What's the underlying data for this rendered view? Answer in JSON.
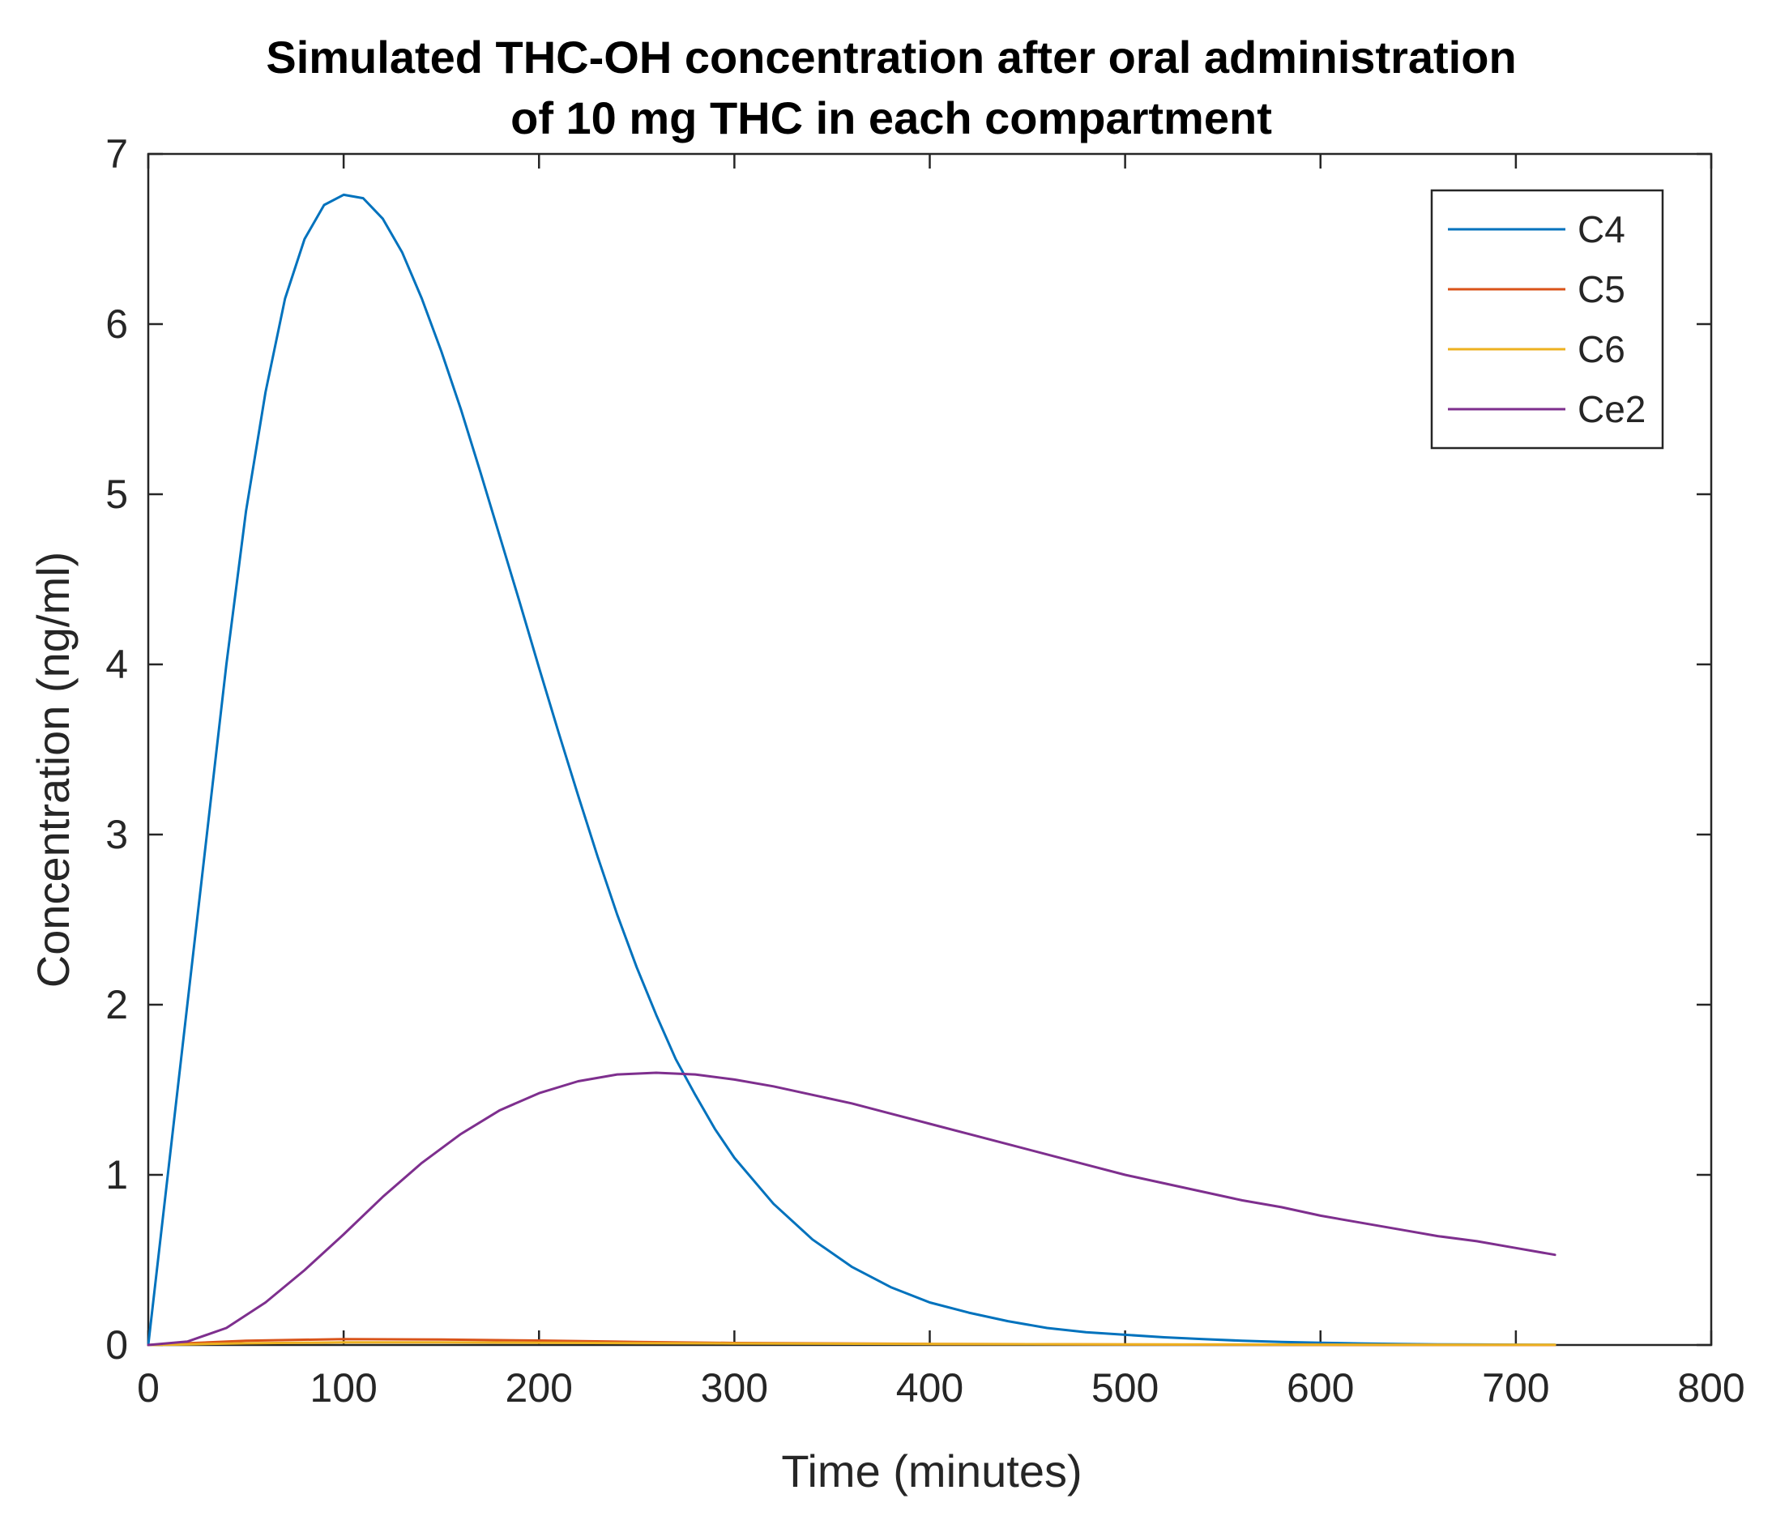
{
  "chart_data": {
    "type": "line",
    "title": [
      "Simulated THC-OH concentration after oral administration",
      "of 10 mg THC in each compartment"
    ],
    "xlabel": "Time (minutes)",
    "ylabel": "Concentration (ng/ml)",
    "xlim": [
      0,
      800
    ],
    "ylim": [
      0,
      7
    ],
    "xticks": [
      0,
      100,
      200,
      300,
      400,
      500,
      600,
      700,
      800
    ],
    "yticks": [
      0,
      1,
      2,
      3,
      4,
      5,
      6,
      7
    ],
    "grid": false,
    "legend_position": "top-right",
    "series": [
      {
        "name": "C4",
        "color": "#0072BD",
        "x": [
          0,
          10,
          20,
          30,
          40,
          50,
          60,
          70,
          80,
          90,
          100,
          110,
          120,
          130,
          140,
          150,
          160,
          170,
          180,
          190,
          200,
          210,
          220,
          230,
          240,
          250,
          260,
          270,
          280,
          290,
          300,
          320,
          340,
          360,
          380,
          400,
          420,
          440,
          460,
          480,
          500,
          520,
          540,
          560,
          580,
          600,
          620,
          640,
          660,
          680,
          700,
          720
        ],
        "y": [
          0,
          1.0,
          2.0,
          3.0,
          4.0,
          4.9,
          5.6,
          6.15,
          6.5,
          6.7,
          6.76,
          6.74,
          6.62,
          6.42,
          6.15,
          5.84,
          5.5,
          5.13,
          4.75,
          4.37,
          3.98,
          3.6,
          3.23,
          2.87,
          2.53,
          2.22,
          1.94,
          1.68,
          1.47,
          1.27,
          1.1,
          0.83,
          0.62,
          0.46,
          0.34,
          0.25,
          0.19,
          0.14,
          0.1,
          0.075,
          0.06,
          0.045,
          0.035,
          0.025,
          0.018,
          0.013,
          0.009,
          0.006,
          0.004,
          0.003,
          0.002,
          0.001
        ]
      },
      {
        "name": "C5",
        "color": "#D95319",
        "x": [
          0,
          20,
          50,
          100,
          150,
          200,
          250,
          300,
          400,
          500,
          600,
          720
        ],
        "y": [
          0,
          0.01,
          0.025,
          0.035,
          0.032,
          0.026,
          0.018,
          0.012,
          0.006,
          0.003,
          0.001,
          0.0
        ]
      },
      {
        "name": "C6",
        "color": "#EDB120",
        "x": [
          0,
          20,
          50,
          100,
          150,
          200,
          250,
          300,
          400,
          500,
          600,
          720
        ],
        "y": [
          0,
          0.004,
          0.01,
          0.015,
          0.015,
          0.013,
          0.011,
          0.009,
          0.006,
          0.004,
          0.002,
          0.001
        ]
      },
      {
        "name": "Ce2",
        "color": "#7E2F8E",
        "x": [
          0,
          20,
          40,
          60,
          80,
          100,
          120,
          140,
          160,
          180,
          200,
          220,
          240,
          260,
          280,
          300,
          320,
          340,
          360,
          380,
          400,
          420,
          440,
          460,
          480,
          500,
          520,
          540,
          560,
          580,
          600,
          620,
          640,
          660,
          680,
          700,
          720
        ],
        "y": [
          0,
          0.02,
          0.1,
          0.25,
          0.44,
          0.65,
          0.87,
          1.07,
          1.24,
          1.38,
          1.48,
          1.55,
          1.59,
          1.6,
          1.59,
          1.56,
          1.52,
          1.47,
          1.42,
          1.36,
          1.3,
          1.24,
          1.18,
          1.12,
          1.06,
          1.0,
          0.95,
          0.9,
          0.85,
          0.81,
          0.76,
          0.72,
          0.68,
          0.64,
          0.61,
          0.57,
          0.53
        ]
      }
    ]
  }
}
